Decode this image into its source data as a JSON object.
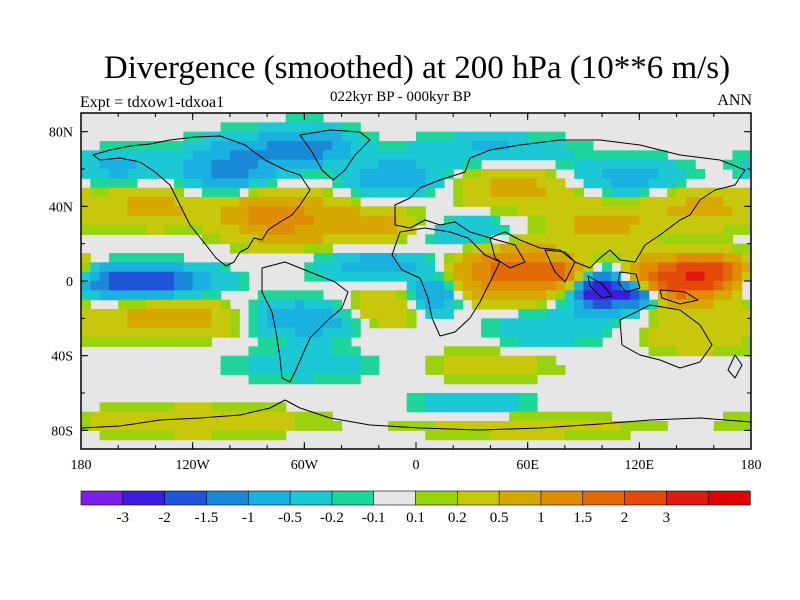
{
  "header": {
    "title": "Divergence (smoothed) at 200 hPa (10**6 m/s)",
    "subtitle": "022kyr BP - 000kyr BP",
    "left_label": "Expt = tdxow1-tdxoa1",
    "right_label": "ANN"
  },
  "chart_data": {
    "type": "heatmap",
    "title": "Divergence (smoothed) at 200 hPa (10**6 m/s)",
    "subtitle": "022kyr BP - 000kyr BP",
    "projection": "cylindrical equidistant, global",
    "x_ticks": [
      "180",
      "120W",
      "60W",
      "0",
      "60E",
      "120E",
      "180"
    ],
    "x_tick_values": [
      -180,
      -120,
      -60,
      0,
      60,
      120,
      180
    ],
    "y_ticks": [
      "80N",
      "40N",
      "0",
      "40S",
      "80S"
    ],
    "y_tick_values": [
      80,
      40,
      0,
      -40,
      -80
    ],
    "xlim": [
      -180,
      180
    ],
    "ylim": [
      -90,
      90
    ],
    "colorbar": {
      "levels": [
        "-3",
        "-2",
        "-1.5",
        "-1",
        "-0.5",
        "-0.2",
        "-0.1",
        "0.1",
        "0.2",
        "0.5",
        "1",
        "1.5",
        "2",
        "3"
      ],
      "colors": [
        "#7b1fe6",
        "#3a1ee0",
        "#1f55d9",
        "#1a8ad8",
        "#1ab0e0",
        "#1cc8d4",
        "#1ed59c",
        "#e6e6e6",
        "#9ad20c",
        "#c8c80a",
        "#d8a802",
        "#e08c04",
        "#e26a06",
        "#e44a0a",
        "#e01a10",
        "#e00000"
      ]
    },
    "regions": [
      {
        "lon": 140,
        "lat": 0,
        "rlon": 30,
        "rlat": 12,
        "value": 2.2
      },
      {
        "lon": 160,
        "lat": 5,
        "rlon": 20,
        "rlat": 8,
        "value": 1.8
      },
      {
        "lon": 50,
        "lat": 5,
        "rlon": 30,
        "rlat": 14,
        "value": 1.8
      },
      {
        "lon": 80,
        "lat": 3,
        "rlon": 15,
        "rlat": 8,
        "value": 1.2
      },
      {
        "lon": 100,
        "lat": -5,
        "rlon": 16,
        "rlat": 10,
        "value": -3.2
      },
      {
        "lon": 120,
        "lat": -8,
        "rlon": 10,
        "rlat": 6,
        "value": -2.0
      },
      {
        "lon": -150,
        "lat": 0,
        "rlon": 35,
        "rlat": 8,
        "value": -2.2
      },
      {
        "lon": -75,
        "lat": 35,
        "rlon": 25,
        "rlat": 14,
        "value": 1.3
      },
      {
        "lon": -30,
        "lat": 30,
        "rlon": 30,
        "rlat": 10,
        "value": 0.8
      },
      {
        "lon": -140,
        "lat": 40,
        "rlon": 40,
        "rlat": 12,
        "value": 0.6
      },
      {
        "lon": -160,
        "lat": 60,
        "rlon": 25,
        "rlat": 10,
        "value": -0.6
      },
      {
        "lon": -100,
        "lat": 60,
        "rlon": 25,
        "rlat": 14,
        "value": -1.2
      },
      {
        "lon": -60,
        "lat": 72,
        "rlon": 25,
        "rlat": 10,
        "value": -1.3
      },
      {
        "lon": -10,
        "lat": 55,
        "rlon": 25,
        "rlat": 10,
        "value": -0.9
      },
      {
        "lon": 60,
        "lat": 50,
        "rlon": 40,
        "rlat": 12,
        "value": 0.7
      },
      {
        "lon": 40,
        "lat": 70,
        "rlon": 40,
        "rlat": 8,
        "value": -0.6
      },
      {
        "lon": 110,
        "lat": 55,
        "rlon": 35,
        "rlat": 10,
        "value": -0.8
      },
      {
        "lon": 150,
        "lat": 40,
        "rlon": 30,
        "rlat": 12,
        "value": 0.6
      },
      {
        "lon": 30,
        "lat": 25,
        "rlon": 25,
        "rlat": 10,
        "value": -0.6
      },
      {
        "lon": 100,
        "lat": 30,
        "rlon": 25,
        "rlat": 10,
        "value": 0.7
      },
      {
        "lon": -20,
        "lat": 8,
        "rlon": 30,
        "rlat": 8,
        "value": -0.8
      },
      {
        "lon": 10,
        "lat": -8,
        "rlon": 12,
        "rlat": 10,
        "value": -1.2
      },
      {
        "lon": -60,
        "lat": -20,
        "rlon": 30,
        "rlat": 10,
        "value": -1.0
      },
      {
        "lon": -130,
        "lat": -20,
        "rlon": 40,
        "rlat": 10,
        "value": 0.8
      },
      {
        "lon": -20,
        "lat": -15,
        "rlon": 25,
        "rlat": 10,
        "value": 0.6
      },
      {
        "lon": 70,
        "lat": -25,
        "rlon": 30,
        "rlat": 10,
        "value": -0.5
      },
      {
        "lon": 150,
        "lat": -30,
        "rlon": 30,
        "rlat": 10,
        "value": 0.4
      },
      {
        "lon": -60,
        "lat": -45,
        "rlon": 35,
        "rlat": 8,
        "value": -0.5
      },
      {
        "lon": 40,
        "lat": -45,
        "rlon": 35,
        "rlat": 8,
        "value": 0.4
      },
      {
        "lon": -120,
        "lat": -75,
        "rlon": 60,
        "rlat": 8,
        "value": 0.5
      },
      {
        "lon": 60,
        "lat": -78,
        "rlon": 60,
        "rlat": 6,
        "value": 0.4
      },
      {
        "lon": 30,
        "lat": -65,
        "rlon": 30,
        "rlat": 6,
        "value": -0.5
      }
    ]
  }
}
